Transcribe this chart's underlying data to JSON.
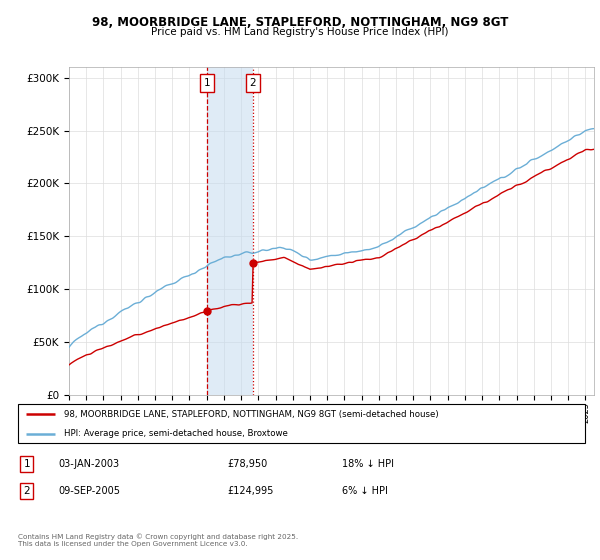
{
  "title_line1": "98, MOORBRIDGE LANE, STAPLEFORD, NOTTINGHAM, NG9 8GT",
  "title_line2": "Price paid vs. HM Land Registry's House Price Index (HPI)",
  "sale1_date": "03-JAN-2003",
  "sale1_price": 78950,
  "sale1_year": 2003.04,
  "sale2_date": "09-SEP-2005",
  "sale2_price": 124995,
  "sale2_year": 2005.69,
  "legend_label_red": "98, MOORBRIDGE LANE, STAPLEFORD, NOTTINGHAM, NG9 8GT (semi-detached house)",
  "legend_label_blue": "HPI: Average price, semi-detached house, Broxtowe",
  "footer": "Contains HM Land Registry data © Crown copyright and database right 2025.\nThis data is licensed under the Open Government Licence v3.0.",
  "red_color": "#cc0000",
  "blue_color": "#6baed6",
  "shade_color": "#c6dbef",
  "ylim_max": 310000,
  "ylim_min": 0,
  "xmin": 1995,
  "xmax": 2025
}
